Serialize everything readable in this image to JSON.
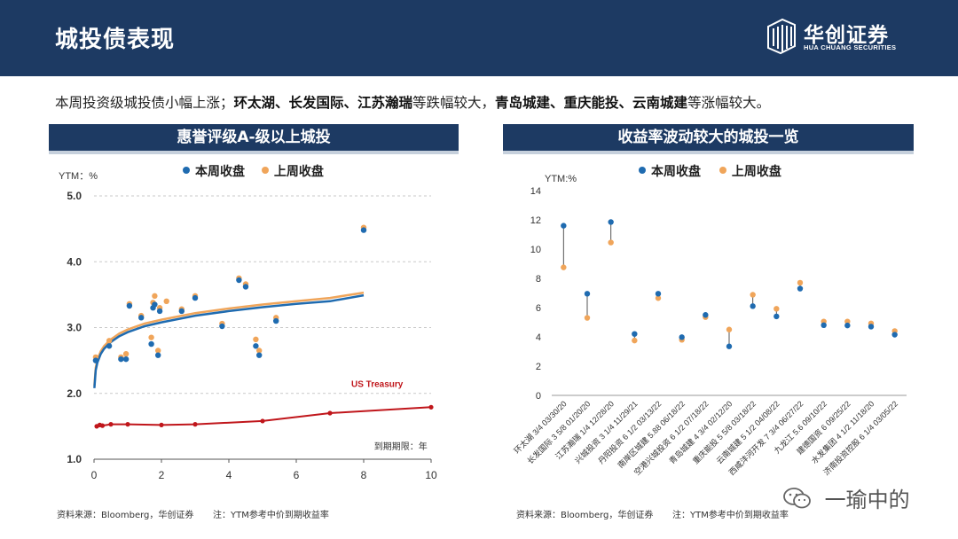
{
  "header": {
    "title": "城投债表现"
  },
  "logo": {
    "name": "华创证券",
    "subtitle": "HUA CHUANG SECURITIES"
  },
  "summary": {
    "parts": [
      {
        "text": "本周投资级城投债小幅上涨；",
        "bold": false
      },
      {
        "text": "环太湖、长发国际、江苏瀚瑞",
        "bold": true
      },
      {
        "text": "等跌幅较大，",
        "bold": false
      },
      {
        "text": "青岛城建、重庆能投、云南城建",
        "bold": true
      },
      {
        "text": "等涨幅较大。",
        "bold": false
      }
    ]
  },
  "colors": {
    "this_week": "#1f6bb0",
    "last_week": "#f0a55a",
    "treasury": "#c0161b",
    "header": "#1d3a63"
  },
  "left_panel": {
    "title": "惠誉评级A-级以上城投",
    "legend": [
      "本周收盘",
      "上周收盘"
    ],
    "ylabel": "YTM：%",
    "xlabel": "到期期限：年",
    "source": "资料来源：Bloomberg，华创证券",
    "note": "注：YTM参考中价到期收益率"
  },
  "right_panel": {
    "title": "收益率波动较大的城投一览",
    "legend": [
      "本周收盘",
      "上周收盘"
    ],
    "ylabel": "YTM:%",
    "source": "资料来源：Bloomberg，华创证券",
    "note": "注：YTM参考中价到期收益率"
  },
  "watermark": {
    "text": "一瑜中的",
    "icon": "wechat-icon"
  },
  "chart_data": [
    {
      "type": "scatter",
      "title": "惠誉评级A-级以上城投",
      "xlabel": "到期期限：年",
      "ylabel": "YTM：%",
      "xlim": [
        0,
        10
      ],
      "ylim": [
        1.0,
        5.0
      ],
      "xticks": [
        0,
        2,
        4,
        6,
        8,
        10
      ],
      "yticks": [
        "1.0",
        "2.0",
        "3.0",
        "4.0",
        "5.0"
      ],
      "grid": "horizontal-dashed",
      "legend_position": "top",
      "series": [
        {
          "name": "本周收盘",
          "points": [
            [
              0.05,
              2.5
            ],
            [
              0.45,
              2.72
            ],
            [
              0.8,
              2.52
            ],
            [
              0.95,
              2.52
            ],
            [
              1.05,
              3.33
            ],
            [
              1.4,
              3.15
            ],
            [
              1.7,
              2.75
            ],
            [
              1.75,
              3.3
            ],
            [
              1.8,
              3.35
            ],
            [
              1.9,
              2.58
            ],
            [
              1.95,
              3.25
            ],
            [
              2.6,
              3.25
            ],
            [
              3.0,
              3.45
            ],
            [
              3.8,
              3.02
            ],
            [
              4.3,
              3.72
            ],
            [
              4.5,
              3.62
            ],
            [
              4.8,
              2.72
            ],
            [
              4.9,
              2.58
            ],
            [
              5.4,
              3.1
            ],
            [
              8.0,
              4.48
            ]
          ]
        },
        {
          "name": "上周收盘",
          "points": [
            [
              0.05,
              2.55
            ],
            [
              0.45,
              2.8
            ],
            [
              0.8,
              2.55
            ],
            [
              0.95,
              2.6
            ],
            [
              1.05,
              3.36
            ],
            [
              1.4,
              3.18
            ],
            [
              1.7,
              2.85
            ],
            [
              1.75,
              3.38
            ],
            [
              1.8,
              3.48
            ],
            [
              1.9,
              2.65
            ],
            [
              1.95,
              3.3
            ],
            [
              2.15,
              3.4
            ],
            [
              2.6,
              3.28
            ],
            [
              3.0,
              3.48
            ],
            [
              3.8,
              3.06
            ],
            [
              4.3,
              3.75
            ],
            [
              4.5,
              3.66
            ],
            [
              4.8,
              2.82
            ],
            [
              4.9,
              2.65
            ],
            [
              5.4,
              3.15
            ],
            [
              8.0,
              4.52
            ]
          ]
        }
      ],
      "fit_curves": {
        "this_week": [
          [
            0.01,
            2.08
          ],
          [
            0.05,
            2.35
          ],
          [
            0.1,
            2.47
          ],
          [
            0.2,
            2.6
          ],
          [
            0.3,
            2.68
          ],
          [
            0.5,
            2.78
          ],
          [
            0.75,
            2.87
          ],
          [
            1,
            2.93
          ],
          [
            1.5,
            3.02
          ],
          [
            2,
            3.08
          ],
          [
            3,
            3.18
          ],
          [
            4,
            3.25
          ],
          [
            5,
            3.31
          ],
          [
            6,
            3.36
          ],
          [
            7,
            3.4
          ],
          [
            8,
            3.49
          ]
        ],
        "last_week": [
          [
            0.01,
            2.12
          ],
          [
            0.05,
            2.39
          ],
          [
            0.1,
            2.51
          ],
          [
            0.2,
            2.64
          ],
          [
            0.3,
            2.72
          ],
          [
            0.5,
            2.82
          ],
          [
            0.75,
            2.91
          ],
          [
            1,
            2.97
          ],
          [
            1.5,
            3.06
          ],
          [
            2,
            3.12
          ],
          [
            3,
            3.22
          ],
          [
            4,
            3.29
          ],
          [
            5,
            3.35
          ],
          [
            6,
            3.4
          ],
          [
            7,
            3.45
          ],
          [
            8,
            3.53
          ]
        ]
      },
      "us_treasury": {
        "label": "US Treasury",
        "points": [
          [
            0.08,
            1.5
          ],
          [
            0.17,
            1.52
          ],
          [
            0.25,
            1.51
          ],
          [
            0.5,
            1.53
          ],
          [
            1,
            1.53
          ],
          [
            2,
            1.52
          ],
          [
            3,
            1.53
          ],
          [
            5,
            1.58
          ],
          [
            7,
            1.7
          ],
          [
            10,
            1.79
          ]
        ]
      }
    },
    {
      "type": "scatter",
      "title": "收益率波动较大的城投一览",
      "ylabel": "YTM:%",
      "ylim": [
        0,
        14
      ],
      "yticks": [
        0,
        2,
        4,
        6,
        8,
        10,
        12,
        14
      ],
      "grid": "none",
      "legend_position": "top",
      "categories": [
        "环太湖 3/4 03/30/20",
        "长发国际 3 5/8 01/20/20",
        "江苏瀚瑞 1/4 12/28/20",
        "兴城投资 3 1/4 11/29/21",
        "丹阳投资 6 1/2 03/13/22",
        "南岸区城建 5.88 06/18/22",
        "空港兴城投资 6 1/2 07/18/22",
        "青岛城建 4 3/4 02/12/20",
        "重庆能投 5 5/8 03/18/22",
        "云南城建 5 1/2 04/08/22",
        "西咸沣河开发 7 3/4 06/27/22",
        "九龙江 5.6 09/10/22",
        "建德国资 6 09/25/22",
        "水发集团 4 1/2 11/18/20",
        "济南投资控股 6 1/4 03/05/22"
      ],
      "series": [
        {
          "name": "本周收盘",
          "values": [
            11.6,
            6.95,
            11.85,
            4.2,
            6.95,
            3.98,
            5.5,
            3.35,
            6.1,
            5.4,
            7.3,
            4.8,
            4.78,
            4.7,
            4.15
          ]
        },
        {
          "name": "上周收盘",
          "values": [
            8.75,
            5.3,
            10.45,
            3.75,
            6.65,
            3.8,
            5.35,
            4.5,
            6.88,
            5.92,
            7.7,
            5.05,
            5.05,
            4.92,
            4.4
          ]
        }
      ]
    }
  ]
}
